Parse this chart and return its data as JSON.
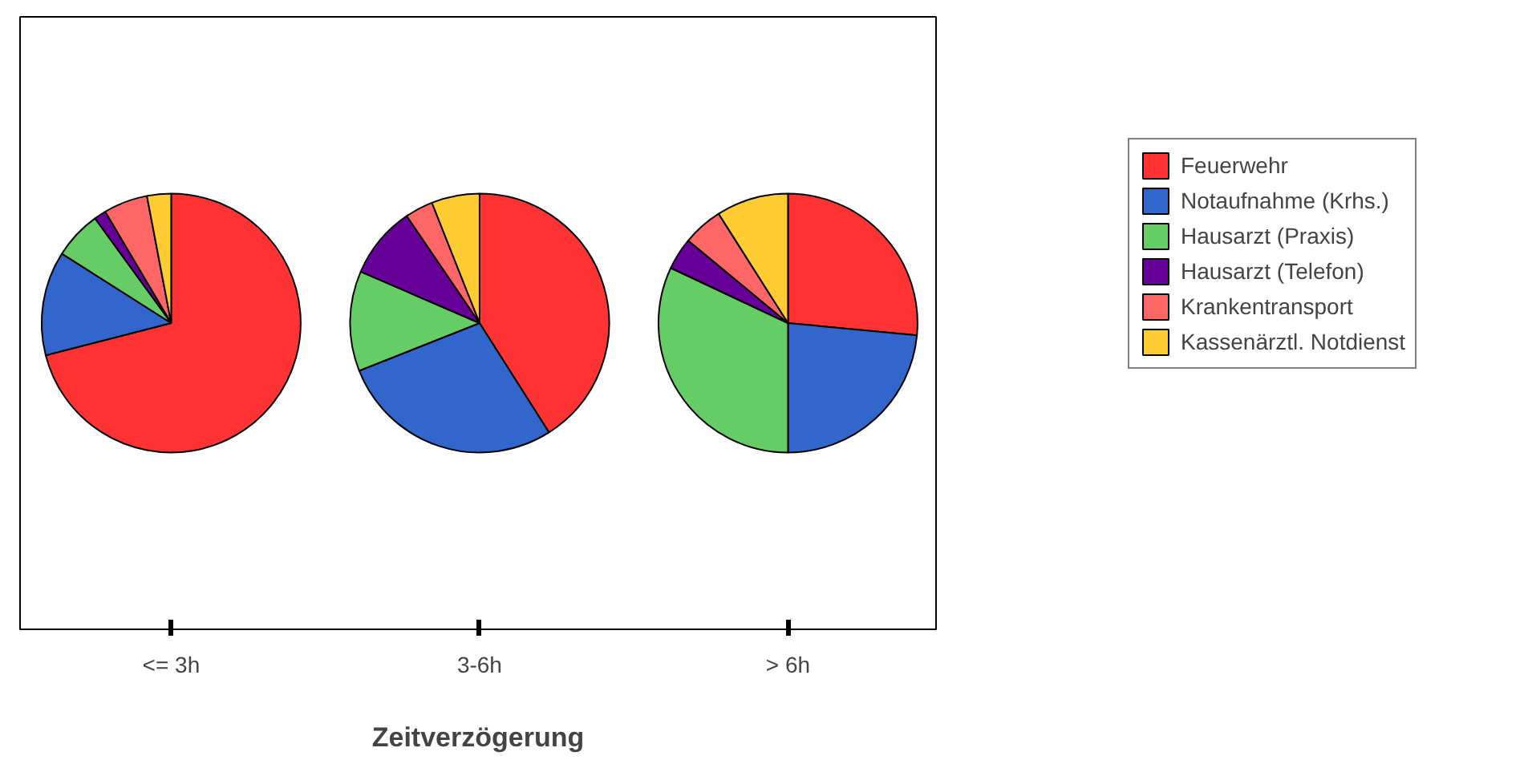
{
  "chart_data": {
    "type": "pie",
    "xlabel": "Zeitverzögerung",
    "legend": "top right",
    "categories": [
      "Feuerwehr",
      "Notaufnahme (Krhs.)",
      "Hausarzt (Praxis)",
      "Hausarzt (Telefon)",
      "Krankentransport",
      "Kassenärztl. Notdienst"
    ],
    "colors": [
      "#ff3333",
      "#3366cc",
      "#66cc66",
      "#660099",
      "#ff6666",
      "#ffcc33"
    ],
    "series": [
      {
        "name": "<= 3h",
        "values": [
          71,
          13,
          6,
          1.5,
          5.5,
          3
        ]
      },
      {
        "name": "3-6h",
        "values": [
          41,
          28,
          12.5,
          9,
          3.5,
          6
        ]
      },
      {
        "name": "> 6h",
        "values": [
          26.5,
          23.5,
          32,
          4,
          5,
          9
        ]
      }
    ]
  }
}
